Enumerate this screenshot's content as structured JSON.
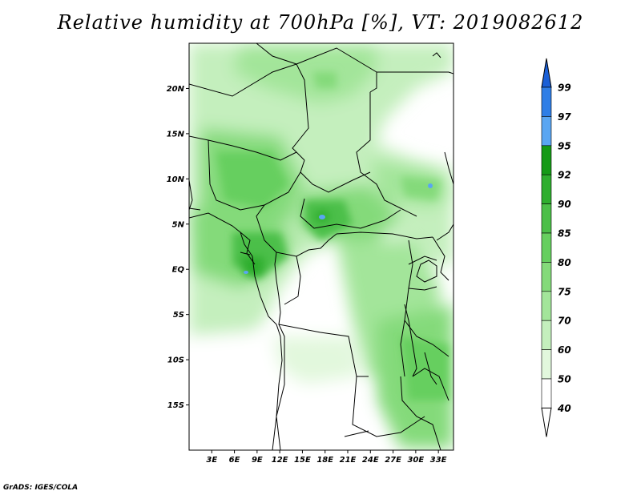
{
  "title": "Relative humidity at 700hPa [%], VT: 2019082612",
  "credit": "GrADS: IGES/COLA",
  "map": {
    "lon_range": [
      0,
      35
    ],
    "lat_range": [
      -20,
      25
    ],
    "lat_ticks": [
      "20N",
      "15N",
      "10N",
      "5N",
      "EQ",
      "5S",
      "10S",
      "15S"
    ],
    "lon_ticks": [
      "3E",
      "6E",
      "9E",
      "12E",
      "15E",
      "18E",
      "21E",
      "24E",
      "27E",
      "30E",
      "33E"
    ],
    "variable": "relative humidity",
    "level": "700hPa",
    "units": "%"
  },
  "colorbar": {
    "levels": [
      "99",
      "97",
      "95",
      "92",
      "90",
      "85",
      "80",
      "75",
      "70",
      "60",
      "50",
      "40"
    ],
    "colors": [
      "#1a5fd6",
      "#2f7ee6",
      "#5aa6f2",
      "#159a16",
      "#2eae2e",
      "#4bbf48",
      "#66cf5f",
      "#84da7a",
      "#a3e59a",
      "#c4efbd",
      "#e2f8dd",
      "#ffffff"
    ],
    "arrows": "both ends"
  }
}
